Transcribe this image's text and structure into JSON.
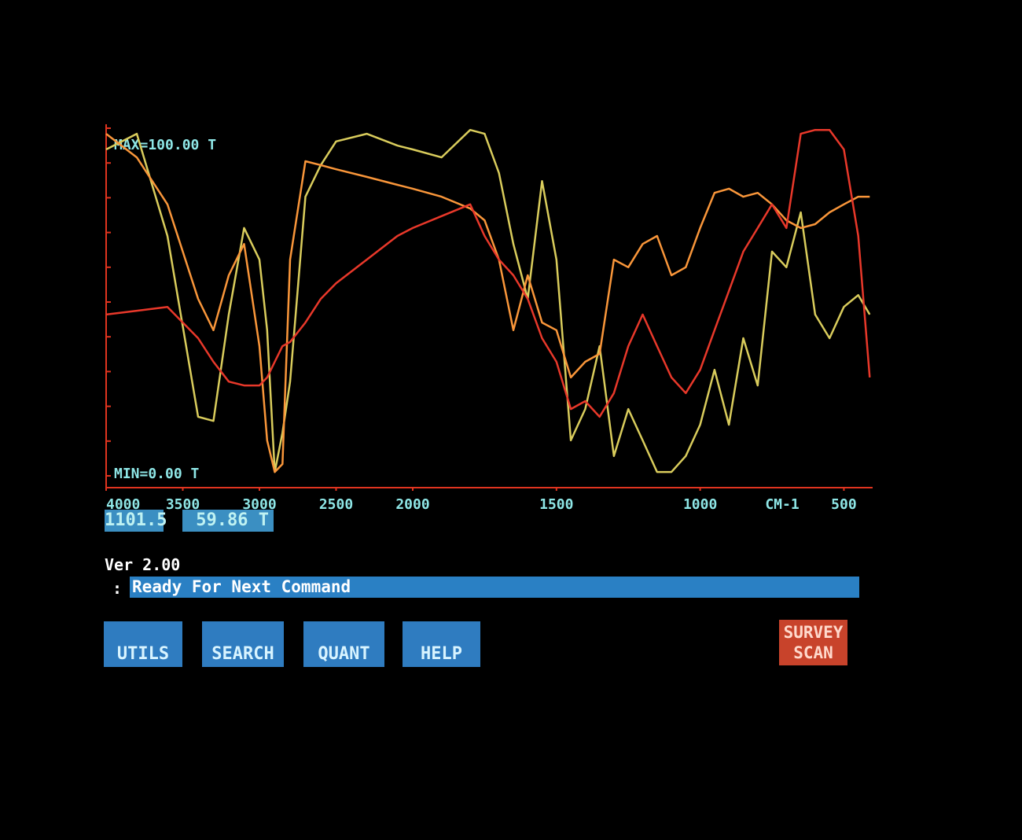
{
  "chart_data": {
    "type": "line",
    "annotations": [
      "MAX=100.00 T",
      "MIN=0.00 T"
    ],
    "x_label": "CM-1",
    "x": [
      4000,
      3800,
      3600,
      3400,
      3300,
      3200,
      3100,
      3000,
      2950,
      2900,
      2850,
      2800,
      2700,
      2600,
      2500,
      2300,
      2100,
      2000,
      1900,
      1800,
      1750,
      1700,
      1650,
      1600,
      1550,
      1500,
      1450,
      1400,
      1350,
      1300,
      1250,
      1200,
      1150,
      1100,
      1050,
      1000,
      950,
      900,
      850,
      800,
      750,
      700,
      650,
      600,
      550,
      500,
      450,
      410
    ],
    "series": [
      {
        "color": "#d9cc5c",
        "values": [
          93.9,
          98.4,
          69.0,
          17.0,
          15.8,
          46.4,
          71.3,
          62.2,
          41.9,
          1.1,
          12.4,
          27.1,
          80.3,
          89.4,
          96.2,
          98.4,
          95.0,
          93.9,
          91.6,
          99.5,
          98.4,
          87.1,
          66.7,
          50.9,
          84.8,
          62.2,
          10.2,
          19.2,
          37.3,
          5.7,
          19.2,
          10.2,
          1.1,
          1.1,
          5.7,
          14.7,
          30.5,
          14.7,
          39.6,
          26.0,
          64.5,
          60.0,
          75.8,
          46.4,
          39.6,
          48.6,
          52.0,
          46.4
        ]
      },
      {
        "color": "#f9963a",
        "values": [
          98.4,
          91.6,
          78.1,
          50.9,
          41.9,
          57.7,
          66.7,
          37.3,
          10.2,
          1.1,
          3.4,
          62.2,
          90.5,
          89.4,
          88.2,
          86.0,
          83.7,
          82.6,
          80.3,
          76.9,
          73.5,
          62.2,
          41.9,
          57.7,
          44.1,
          41.9,
          28.3,
          32.8,
          35.1,
          62.2,
          60.0,
          66.7,
          69.0,
          57.7,
          60.0,
          71.3,
          81.4,
          82.6,
          80.3,
          81.4,
          78.1,
          73.5,
          71.3,
          72.4,
          75.8,
          78.1,
          80.3,
          80.3
        ]
      },
      {
        "color": "#e8382a",
        "values": [
          46.4,
          47.5,
          48.6,
          39.6,
          32.8,
          27.1,
          26.0,
          26.0,
          28.3,
          32.8,
          37.3,
          38.5,
          44.1,
          50.9,
          55.4,
          62.2,
          69.0,
          71.3,
          74.7,
          78.1,
          69.0,
          62.2,
          57.7,
          50.9,
          39.6,
          32.8,
          19.2,
          21.5,
          17.0,
          23.8,
          37.3,
          46.4,
          37.3,
          28.3,
          23.8,
          30.5,
          41.9,
          53.2,
          64.5,
          71.3,
          78.1,
          71.3,
          98.4,
          99.5,
          99.5,
          93.9,
          69.0,
          28.3
        ]
      }
    ],
    "xlim": [
      4000,
      400
    ],
    "xticks": [
      4000,
      3500,
      3000,
      2500,
      2000,
      1500,
      1000,
      500
    ],
    "x_scale_break": 2000,
    "ylim": [
      0,
      100
    ],
    "yticks": [
      0,
      10,
      20,
      30,
      40,
      50,
      60,
      70,
      80,
      90,
      100
    ],
    "axis_color": "#e0341f"
  },
  "readout": {
    "position": "1101.5",
    "value": "59.86 T"
  },
  "version": "Ver 2.00",
  "prompt": ":",
  "status": "Ready For Next Command",
  "buttons": [
    "UTILS",
    "SEARCH",
    "QUANT",
    "HELP"
  ],
  "action_button": [
    "SURVEY",
    "SCAN"
  ]
}
